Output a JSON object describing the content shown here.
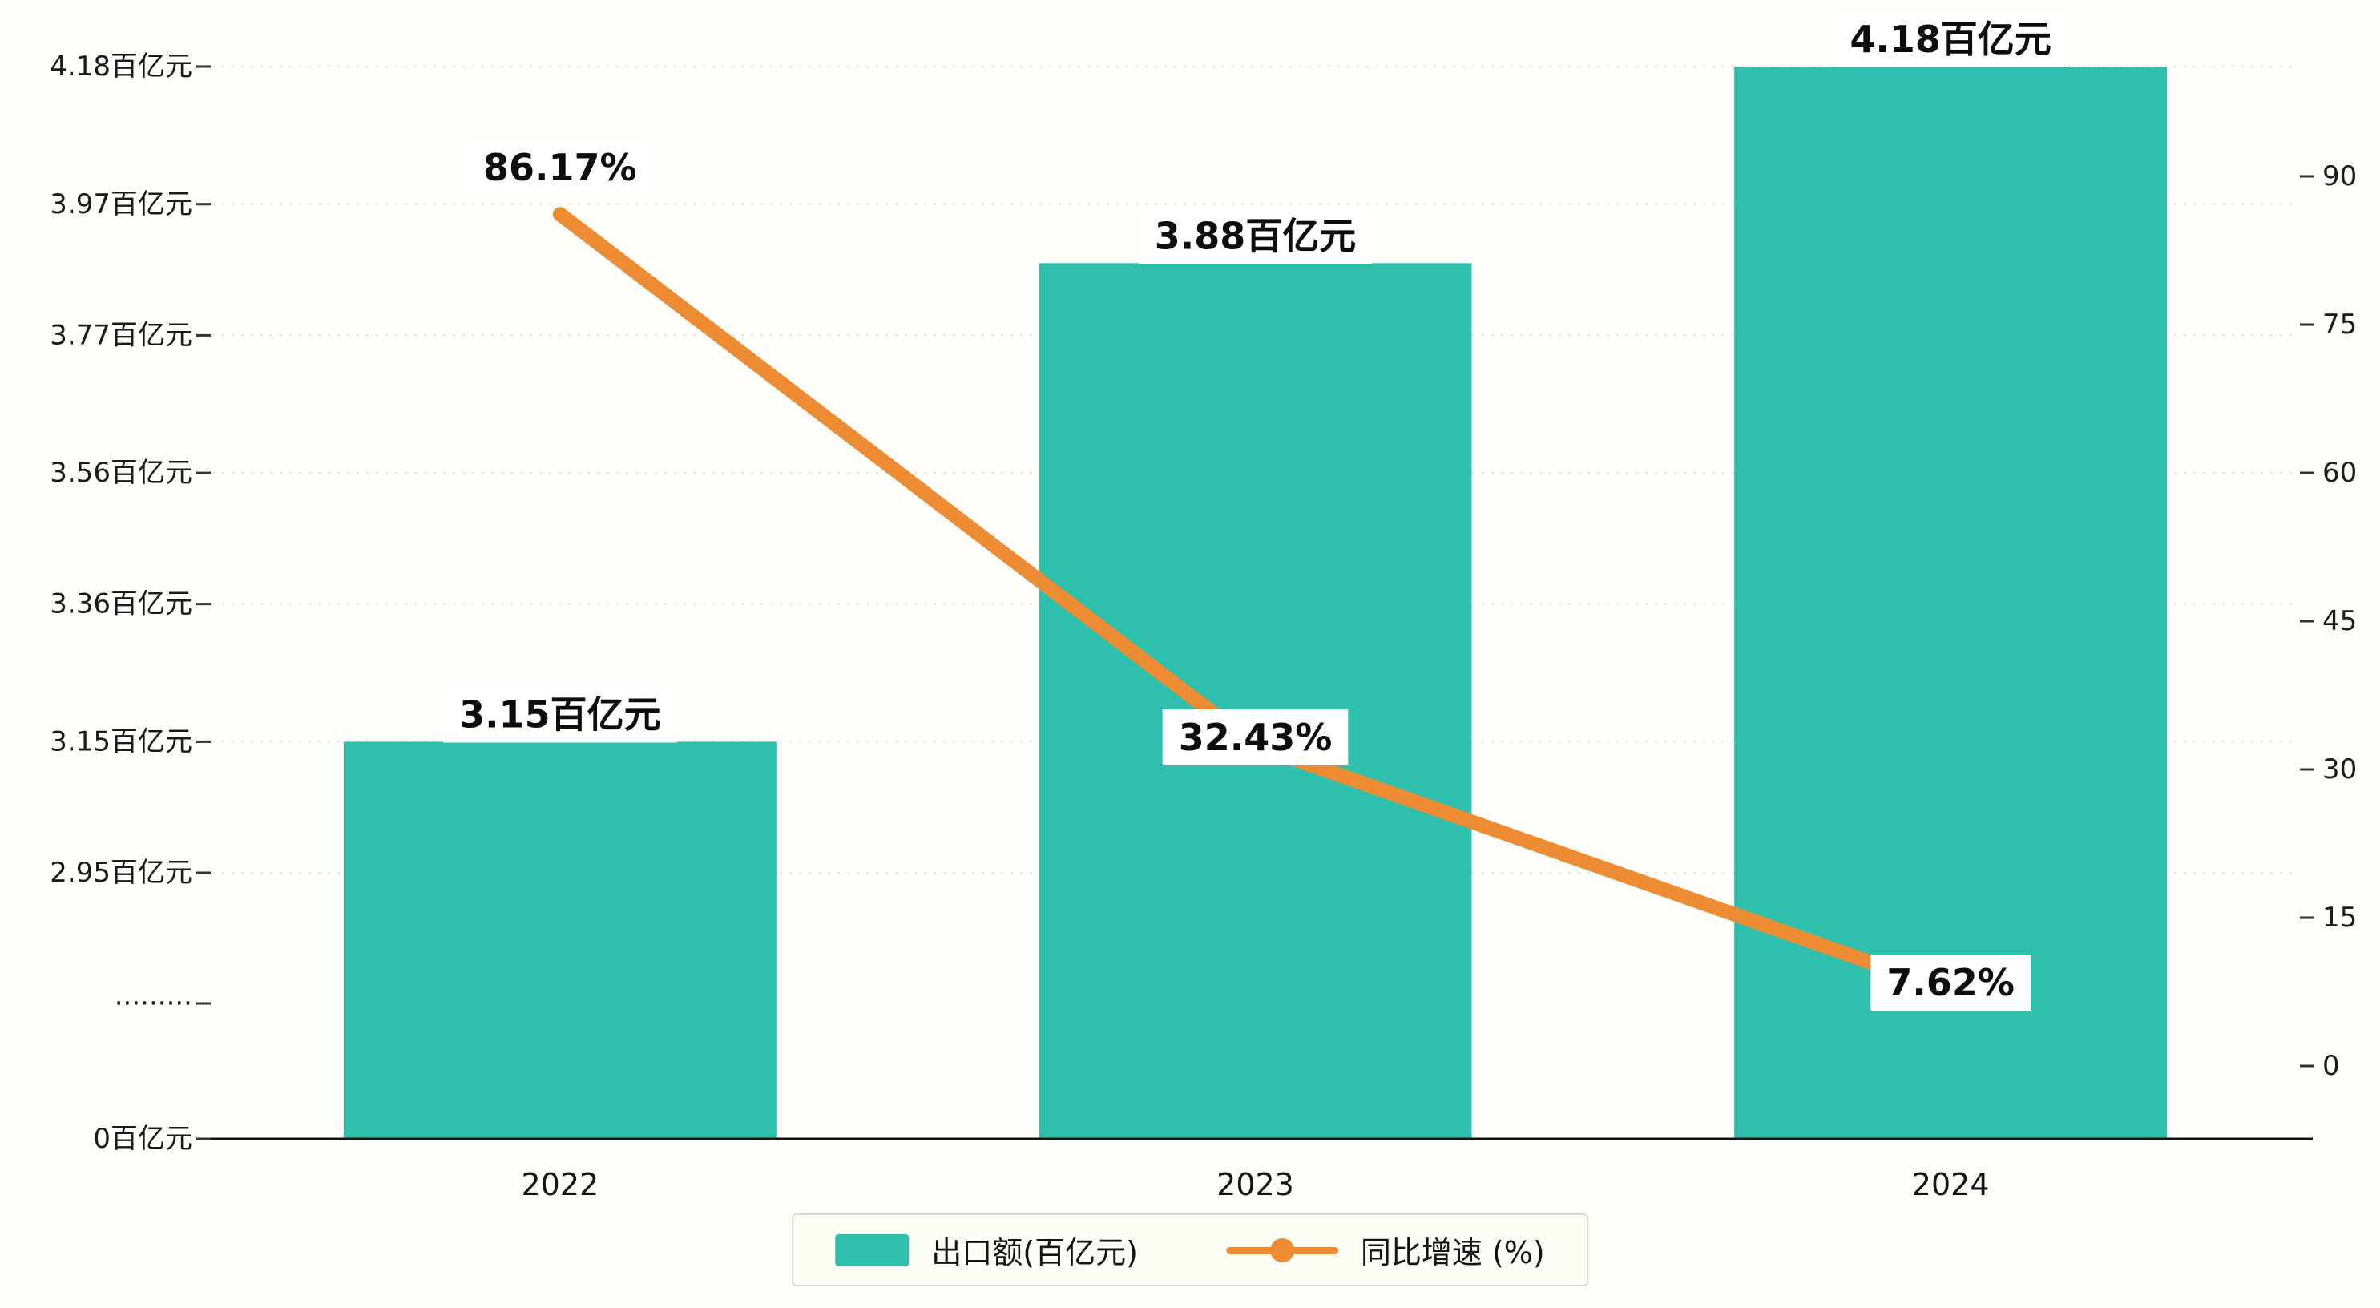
{
  "chart_data": {
    "type": "bar+line",
    "title": "",
    "categories": [
      "2022",
      "2023",
      "2024"
    ],
    "series": [
      {
        "name": "出口额(百亿元)",
        "type": "bar",
        "color": "#2fc0ad",
        "values": [
          3.15,
          3.88,
          4.18
        ],
        "data_labels": [
          "3.15百亿元",
          "3.88百亿元",
          "4.18百亿元"
        ]
      },
      {
        "name": "同比增速 (%)",
        "type": "line",
        "color": "#ee8c33",
        "values": [
          86.17,
          32.43,
          7.62
        ],
        "data_labels": [
          "86.17%",
          "32.43%",
          "7.62%"
        ]
      }
    ],
    "left_axis": {
      "unit": "百亿元",
      "tick_labels": [
        "4.18百亿元",
        "3.97百亿元",
        "3.77百亿元",
        "3.56百亿元",
        "3.36百亿元",
        "3.15百亿元",
        "2.95百亿元",
        "·········",
        "0百亿元"
      ],
      "tick_values": [
        4.18,
        3.97,
        3.77,
        3.56,
        3.36,
        3.15,
        2.95,
        null,
        0
      ],
      "broken_axis": true,
      "note": "axis break between 0 and 2.95"
    },
    "right_axis": {
      "tick_labels": [
        "90",
        "75",
        "60",
        "45",
        "30",
        "15",
        "0"
      ],
      "tick_values": [
        90,
        75,
        60,
        45,
        30,
        15,
        0
      ],
      "range": [
        0,
        97
      ]
    },
    "xlabel": "",
    "grid": true,
    "legend": {
      "position": "bottom",
      "items": [
        {
          "label": "出口额(百亿元)",
          "marker": "square",
          "color": "#2fc0ad"
        },
        {
          "label": "同比增速 (%)",
          "marker": "line-dot",
          "color": "#ee8c33"
        }
      ]
    }
  }
}
